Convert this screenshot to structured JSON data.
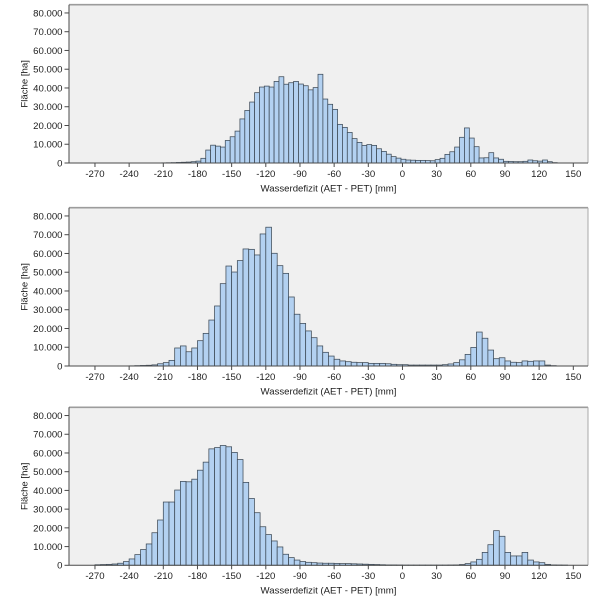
{
  "chart_data": [
    {
      "type": "bar",
      "histogram": true,
      "title": "",
      "xlabel": "Wasserdefizit (AET - PET) [mm]",
      "ylabel": "Fläche [ha]",
      "xlim": [
        -292.8,
        162.9
      ],
      "ylim": [
        0,
        84400
      ],
      "grid": false,
      "legend": "none",
      "xticks": [
        -270,
        -240,
        -210,
        -180,
        -150,
        -120,
        -90,
        -60,
        -30,
        0,
        30,
        60,
        90,
        120,
        150
      ],
      "yticks": [
        0,
        10000,
        20000,
        30000,
        40000,
        50000,
        60000,
        70000,
        80000
      ],
      "ytick_labels": [
        "0",
        "10.000",
        "20.000",
        "30.000",
        "40.000",
        "50.000",
        "60.000",
        "70.000",
        "80.000"
      ],
      "colors": {
        "bar_fill": "#b3d1f1",
        "bar_edge": "#3d4a57",
        "plot_background": "#f0f0f0"
      },
      "bins": {
        "start": -211.3,
        "width": 4.2857,
        "counts": [
          100,
          150,
          200,
          300,
          400,
          500,
          700,
          1000,
          2500,
          6900,
          9500,
          9000,
          8500,
          12000,
          14000,
          17000,
          23500,
          28000,
          32500,
          37500,
          40500,
          41000,
          40500,
          43500,
          46000,
          42000,
          42800,
          43500,
          42100,
          41200,
          39000,
          40200,
          47300,
          34100,
          31300,
          28600,
          20600,
          19000,
          16300,
          13000,
          11000,
          9400,
          9800,
          9400,
          7600,
          6200,
          4700,
          3400,
          2600,
          2000,
          1600,
          1500,
          1400,
          1400,
          1300,
          1200,
          1800,
          2500,
          4600,
          6000,
          8500,
          13700,
          18700,
          13300,
          8700,
          2700,
          2800,
          5500,
          2700,
          2000,
          900,
          800,
          700,
          700,
          900,
          1600,
          1200,
          1000,
          1600,
          700,
          200
        ]
      }
    },
    {
      "type": "bar",
      "histogram": true,
      "title": "",
      "xlabel": "Wasserdefizit (AET - PET) [mm]",
      "ylabel": "Fläche [ha]",
      "xlim": [
        -292.8,
        162.9
      ],
      "ylim": [
        0,
        84400
      ],
      "grid": false,
      "legend": "none",
      "xticks": [
        -270,
        -240,
        -210,
        -180,
        -150,
        -120,
        -90,
        -60,
        -30,
        0,
        30,
        60,
        90,
        120,
        150
      ],
      "yticks": [
        0,
        10000,
        20000,
        30000,
        40000,
        50000,
        60000,
        70000,
        80000
      ],
      "ytick_labels": [
        "0",
        "10.000",
        "20.000",
        "30.000",
        "40.000",
        "50.000",
        "60.000",
        "70.000",
        "80.000"
      ],
      "colors": {
        "bar_fill": "#b3d1f1",
        "bar_edge": "#3d4a57",
        "plot_background": "#f0f0f0"
      },
      "bins": {
        "start": -240,
        "width": 5,
        "counts": [
          100,
          200,
          300,
          400,
          600,
          1200,
          1800,
          3000,
          9600,
          10700,
          7600,
          9600,
          13500,
          17400,
          24500,
          32000,
          43900,
          53300,
          50100,
          56200,
          62400,
          62200,
          59200,
          70400,
          74000,
          60100,
          53500,
          49400,
          36800,
          27600,
          22700,
          18700,
          15100,
          10700,
          7300,
          5300,
          3600,
          2700,
          2300,
          2000,
          1800,
          1800,
          1400,
          1400,
          1400,
          1200,
          900,
          700,
          700,
          500,
          500,
          500,
          500,
          500,
          500,
          700,
          1100,
          1800,
          3300,
          6200,
          9900,
          18100,
          14800,
          8500,
          3900,
          4400,
          2700,
          2000,
          1800,
          2700,
          2500,
          2700,
          2700,
          500,
          200
        ]
      }
    },
    {
      "type": "bar",
      "histogram": true,
      "title": "",
      "xlabel": "Wasserdefizit (AET - PET) [mm]",
      "ylabel": "Fläche [ha]",
      "xlim": [
        -292.8,
        162.9
      ],
      "ylim": [
        0,
        84400
      ],
      "grid": false,
      "legend": "none",
      "xticks": [
        -270,
        -240,
        -210,
        -180,
        -150,
        -120,
        -90,
        -60,
        -30,
        0,
        30,
        60,
        90,
        120,
        150
      ],
      "yticks": [
        0,
        10000,
        20000,
        30000,
        40000,
        50000,
        60000,
        70000,
        80000
      ],
      "ytick_labels": [
        "0",
        "10.000",
        "20.000",
        "30.000",
        "40.000",
        "50.000",
        "60.000",
        "70.000",
        "80.000"
      ],
      "colors": {
        "bar_fill": "#b3d1f1",
        "bar_edge": "#3d4a57",
        "plot_background": "#f0f0f0"
      },
      "bins": {
        "start": -270,
        "width": 5,
        "counts": [
          300,
          400,
          500,
          700,
          1100,
          2000,
          3400,
          5700,
          8400,
          11400,
          17400,
          24200,
          33800,
          33800,
          40200,
          44800,
          44600,
          46000,
          50800,
          55100,
          62200,
          62900,
          64000,
          63300,
          60300,
          56500,
          44300,
          35700,
          28100,
          20600,
          16400,
          13000,
          9800,
          5900,
          4100,
          2800,
          2000,
          1600,
          1400,
          1200,
          1100,
          1100,
          1000,
          900,
          900,
          800,
          700,
          600,
          500,
          400,
          300,
          200,
          200,
          150,
          100,
          100,
          100,
          100,
          100,
          100,
          100,
          100,
          150,
          200,
          400,
          900,
          1800,
          3200,
          6900,
          11000,
          18500,
          15500,
          6900,
          5000,
          5000,
          6900,
          2800,
          1800,
          1400,
          500,
          200,
          150,
          100
        ]
      }
    }
  ]
}
